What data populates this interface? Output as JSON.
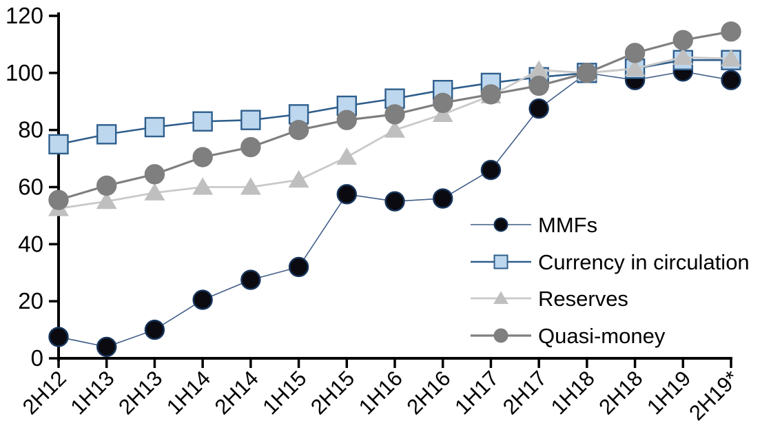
{
  "chart_data": {
    "type": "line",
    "title": "",
    "categories": [
      "2H12",
      "1H13",
      "2H13",
      "1H14",
      "2H14",
      "1H15",
      "2H15",
      "1H16",
      "2H16",
      "1H17",
      "2H17",
      "1H18",
      "2H18",
      "1H19",
      "2H19*"
    ],
    "series": [
      {
        "name": "MMFs",
        "marker": "circle",
        "line_color": "#415d87",
        "marker_fill": "#0a0a10",
        "marker_border": "#17365d",
        "line_width": 1.6,
        "values": [
          7.5,
          4,
          10,
          20.5,
          27.5,
          32,
          57.5,
          55,
          56,
          66,
          87.5,
          100,
          97.5,
          100.5,
          97.5
        ]
      },
      {
        "name": "Currency in circulation",
        "marker": "square",
        "line_color": "#2e5e8c",
        "marker_fill": "#bdd7ee",
        "marker_border": "#2e5e8c",
        "line_width": 2.6,
        "values": [
          75,
          78.5,
          81,
          83,
          83.5,
          85.5,
          88.5,
          91,
          94,
          96.5,
          98.5,
          100,
          101.5,
          104.5,
          104.5
        ]
      },
      {
        "name": "Reserves",
        "marker": "triangle",
        "line_color": "#c9c9c9",
        "marker_fill": "#bfbfbf",
        "marker_border": "#bfbfbf",
        "line_width": 2.8,
        "values": [
          52.5,
          55,
          58,
          60,
          60,
          62.5,
          70.5,
          80,
          85.5,
          92,
          101,
          100,
          101.5,
          105.5,
          105
        ]
      },
      {
        "name": "Quasi-money",
        "marker": "circle",
        "line_color": "#7f7f7f",
        "marker_fill": "#7f7f7f",
        "marker_border": "#7f7f7f",
        "line_width": 3.2,
        "values": [
          55.5,
          60.5,
          64.5,
          70.5,
          74,
          80,
          83.5,
          85.5,
          89.5,
          92.5,
          95.5,
          100,
          107,
          111.5,
          114.5
        ]
      }
    ],
    "y_axis": {
      "min": 0,
      "max": 120,
      "step": 20,
      "tick_labels": [
        "0",
        "20",
        "40",
        "60",
        "80",
        "100",
        "120"
      ]
    },
    "x_axis": {
      "tick_labels": [
        "2H12",
        "1H13",
        "2H13",
        "1H14",
        "2H14",
        "1H15",
        "2H15",
        "1H16",
        "2H16",
        "1H17",
        "2H17",
        "1H18",
        "2H18",
        "1H19",
        "2H19*"
      ],
      "label_rotation_deg": -45
    },
    "legend": {
      "position": "inside-right",
      "items": [
        "MMFs",
        "Currency in circulation",
        "Reserves",
        "Quasi-money"
      ]
    },
    "grid": false,
    "axis_color": "#000000",
    "background_color": "#ffffff"
  }
}
